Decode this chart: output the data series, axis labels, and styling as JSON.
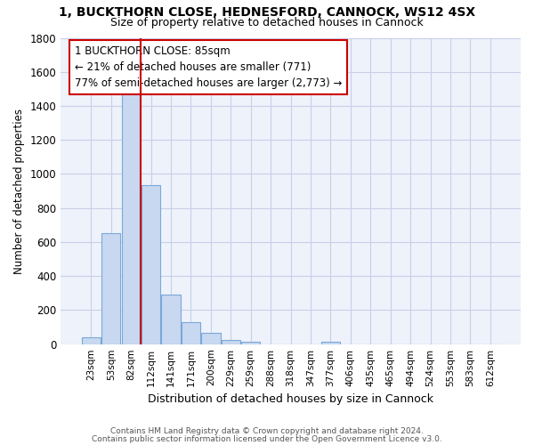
{
  "title_line1": "1, BUCKTHORN CLOSE, HEDNESFORD, CANNOCK, WS12 4SX",
  "title_line2": "Size of property relative to detached houses in Cannock",
  "xlabel": "Distribution of detached houses by size in Cannock",
  "ylabel": "Number of detached properties",
  "footer_line1": "Contains HM Land Registry data © Crown copyright and database right 2024.",
  "footer_line2": "Contains public sector information licensed under the Open Government Licence v3.0.",
  "bin_labels": [
    "23sqm",
    "53sqm",
    "82sqm",
    "112sqm",
    "141sqm",
    "171sqm",
    "200sqm",
    "229sqm",
    "259sqm",
    "288sqm",
    "318sqm",
    "347sqm",
    "377sqm",
    "406sqm",
    "435sqm",
    "465sqm",
    "494sqm",
    "524sqm",
    "553sqm",
    "583sqm",
    "612sqm"
  ],
  "bar_values": [
    40,
    650,
    1475,
    935,
    290,
    130,
    65,
    25,
    15,
    0,
    0,
    0,
    15,
    0,
    0,
    0,
    0,
    0,
    0,
    0,
    0
  ],
  "bar_color": "#c8d8f0",
  "bar_edgecolor": "#7aa8d8",
  "vline_x_index": 2,
  "vline_color": "#cc0000",
  "annotation_text": "1 BUCKTHORN CLOSE: 85sqm\n← 21% of detached houses are smaller (771)\n77% of semi-detached houses are larger (2,773) →",
  "annotation_box_color": "#cc0000",
  "ylim": [
    0,
    1800
  ],
  "yticks": [
    0,
    200,
    400,
    600,
    800,
    1000,
    1200,
    1400,
    1600,
    1800
  ],
  "bg_color": "#ffffff",
  "plot_bg_color": "#eef2fb",
  "grid_color": "#c8cfe8"
}
